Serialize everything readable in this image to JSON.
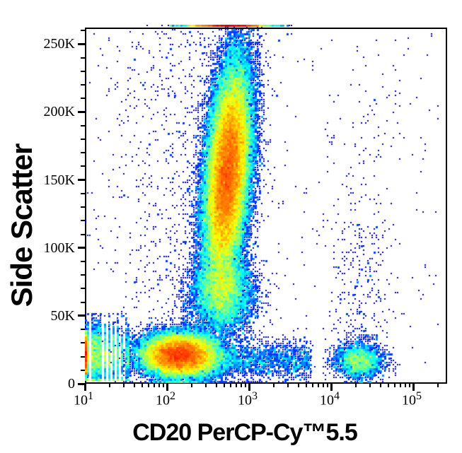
{
  "chart_data": {
    "type": "scatter",
    "subtype": "flow-cytometry-pseudocolor-density-plot",
    "title": "",
    "xlabel": "CD20 PerCP-Cy™5.5",
    "ylabel": "Side Scatter",
    "x_scale": "log10",
    "x_range_log10": [
      1.0,
      5.414
    ],
    "y_range": [
      0,
      262144
    ],
    "grid": false,
    "legend": null,
    "x_ticks": [
      {
        "base": "10",
        "exponent": "1",
        "log": 1
      },
      {
        "base": "10",
        "exponent": "2",
        "log": 2
      },
      {
        "base": "10",
        "exponent": "3",
        "log": 3
      },
      {
        "base": "10",
        "exponent": "4",
        "log": 4
      },
      {
        "base": "10",
        "exponent": "5",
        "log": 5
      }
    ],
    "x_minor_multipliers": [
      2,
      3,
      4,
      5,
      6,
      7,
      8,
      9
    ],
    "x_extra_minor_logs": [
      5.301
    ],
    "y_ticks": [
      {
        "value_K": 0,
        "label": "0"
      },
      {
        "value_K": 50,
        "label": "50K"
      },
      {
        "value_K": 100,
        "label": "100K"
      },
      {
        "value_K": 150,
        "label": "150K"
      },
      {
        "value_K": 200,
        "label": "200K"
      },
      {
        "value_K": 250,
        "label": "250K"
      }
    ],
    "y_minor_step_K": 10,
    "y_minor_max_K": 260,
    "density_colormap_low_to_high": [
      "#000090",
      "#0000ff",
      "#00ccff",
      "#00ff66",
      "#aaff00",
      "#ffff00",
      "#ff8000",
      "#ff0000"
    ],
    "single_event_color": "#000090",
    "populations": [
      {
        "name": "low-signal-stripes",
        "n": 3200,
        "x": {
          "dist": "choice",
          "values": [
            1.0,
            1.0414,
            1.0792,
            1.1139,
            1.1461,
            1.1761,
            1.2041,
            1.2553,
            1.301,
            1.3424,
            1.3979,
            1.4472,
            1.4914,
            1.5315
          ],
          "weights": [
            1,
            1,
            1,
            0.95,
            0.9,
            0.9,
            0.85,
            0.8,
            0.75,
            0.65,
            0.6,
            0.5,
            0.45,
            0.4
          ]
        },
        "y": {
          "dist": "gauss",
          "mu": 22,
          "sd": 11
        },
        "yclamp": [
          2.5,
          52
        ]
      },
      {
        "name": "axis-pinned-left-strip",
        "n": 900,
        "x": {
          "dist": "const",
          "v": 0.995
        },
        "y": {
          "dist": "gauss",
          "mu": 21,
          "sd": 8
        },
        "yclamp": [
          7,
          38
        ]
      },
      {
        "name": "lymphocytes",
        "n": 21000,
        "x": {
          "dist": "gauss",
          "mu": 2.15,
          "sd": 0.23
        },
        "y": {
          "dist": "gauss",
          "mu": 21,
          "sd": 8
        }
      },
      {
        "name": "cd20-negative-low-ssc-tail",
        "n": 1900,
        "x": {
          "dist": "uniform",
          "min": 2.42,
          "max": 3.75
        },
        "y": {
          "dist": "gauss",
          "mu": 17,
          "sd": 7
        },
        "yclamp": [
          2,
          262
        ]
      },
      {
        "name": "monocytes",
        "n": 5500,
        "x": {
          "dist": "gauss",
          "mu": 2.68,
          "sd": 0.19
        },
        "y": {
          "dist": "gauss",
          "mu": 66,
          "sd": 14
        }
      },
      {
        "name": "granulocytes",
        "n": 48000,
        "x": {
          "dist": "gauss",
          "mu": 2.74,
          "sd": 0.14
        },
        "y": {
          "dist": "gauss",
          "mu": 155,
          "sd": 40
        },
        "rho": 0.35,
        "pile_top": true
      },
      {
        "name": "ssc-max-pileup-strip",
        "n": 2400,
        "x": {
          "dist": "gauss",
          "mu": 2.74,
          "sd": 0.25
        },
        "y": {
          "dist": "const",
          "v": 263.8
        },
        "pile_top": true
      },
      {
        "name": "cd20-positive-b-cells",
        "n": 2200,
        "x": {
          "dist": "gauss",
          "mu": 4.34,
          "sd": 0.15
        },
        "y": {
          "dist": "gauss",
          "mu": 17,
          "sd": 6.5
        },
        "yclamp": [
          2,
          262
        ]
      },
      {
        "name": "cd20-positive-halo",
        "n": 260,
        "x": {
          "dist": "gauss",
          "mu": 4.35,
          "sd": 0.2
        },
        "y": {
          "dist": "uniform",
          "min": 25,
          "max": 120
        }
      },
      {
        "name": "cd20-positive-high-ssc-sparse",
        "n": 70,
        "x": {
          "dist": "gauss",
          "mu": 4.4,
          "sd": 0.22
        },
        "y": {
          "dist": "gauss",
          "mu": 170,
          "sd": 35
        }
      },
      {
        "name": "sparse-noise-left",
        "n": 950,
        "x": {
          "dist": "gauss",
          "mu": 2.25,
          "sd": 0.5
        },
        "y": {
          "dist": "uniform",
          "min": 32,
          "max": 260
        }
      },
      {
        "name": "sparse-noise-wide",
        "n": 330,
        "x": {
          "dist": "uniform",
          "min": 1.02,
          "max": 5.35
        },
        "y": {
          "dist": "uniform",
          "min": 2,
          "max": 258
        }
      }
    ]
  }
}
